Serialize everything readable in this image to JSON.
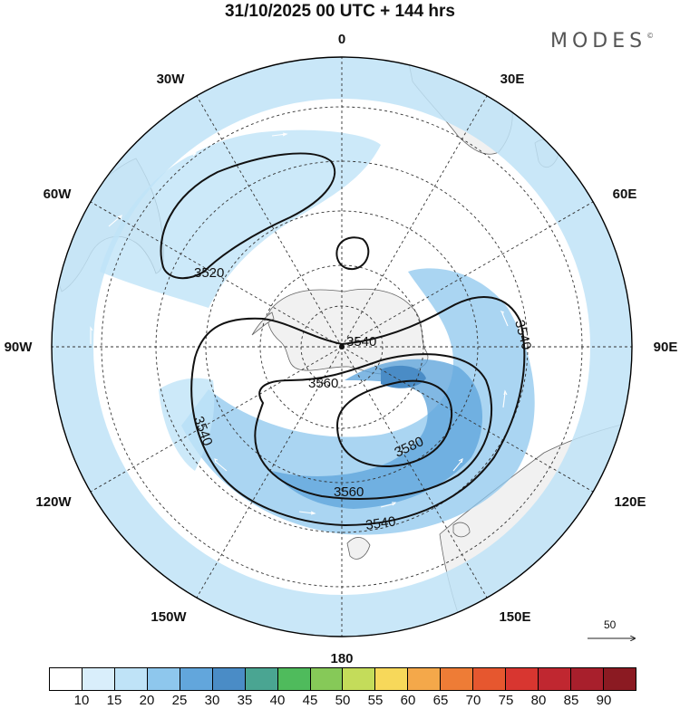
{
  "title": "31/10/2025  00 UTC  + 144 hrs",
  "logo": {
    "text": "MODES",
    "mark": "©"
  },
  "longitude_labels": {
    "lon_0": "0",
    "lon_30e": "30E",
    "lon_60e": "60E",
    "lon_90e": "90E",
    "lon_120e": "120E",
    "lon_150e": "150E",
    "lon_180": "180",
    "lon_150w": "150W",
    "lon_120w": "120W",
    "lon_90w": "90W",
    "lon_60w": "60W",
    "lon_30w": "30W"
  },
  "contour_labels": {
    "c3520": "3520",
    "c3540_east": "3540",
    "c3540_center": "3540",
    "c3560_inner": "3560",
    "c3540_west": "3540",
    "c3580": "3580",
    "c3560_south": "3560",
    "c3540_south": "3540"
  },
  "reference_vector": {
    "label": "50"
  },
  "colorbar": {
    "colors": [
      "#ffffff",
      "#d9eefb",
      "#bfe3f7",
      "#8ec7ed",
      "#62a6dc",
      "#4a8cc6",
      "#4aa592",
      "#4fbb5c",
      "#86c958",
      "#c4dc5a",
      "#f7d85a",
      "#f4a84a",
      "#ee7c36",
      "#e6572f",
      "#d83630",
      "#c02730",
      "#a81f2c",
      "#8b1a22"
    ],
    "labels": [
      "10",
      "15",
      "20",
      "25",
      "30",
      "35",
      "40",
      "45",
      "50",
      "55",
      "60",
      "65",
      "70",
      "75",
      "80",
      "85",
      "90"
    ]
  }
}
